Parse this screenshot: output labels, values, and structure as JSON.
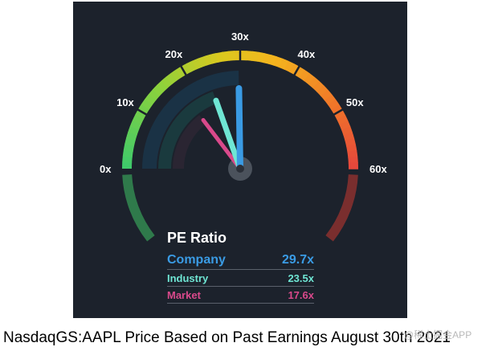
{
  "chart_data": {
    "type": "gauge",
    "title": "PE Ratio",
    "scale": {
      "min": 0,
      "max": 60,
      "ticks": [
        0,
        10,
        20,
        30,
        40,
        50,
        60
      ],
      "tick_labels": [
        "0x",
        "10x",
        "20x",
        "30x",
        "40x",
        "50x",
        "60x"
      ]
    },
    "series": [
      {
        "name": "Company",
        "value": 29.7,
        "label": "29.7x",
        "color": "#3a9be4"
      },
      {
        "name": "Industry",
        "value": 23.5,
        "label": "23.5x",
        "color": "#6fe6d4"
      },
      {
        "name": "Market",
        "value": 17.6,
        "label": "17.6x",
        "color": "#d9498b"
      }
    ]
  },
  "caption": "NasdaqGS:AAPL Price Based on Past Earnings August 30th 2021",
  "watermark": "@稀土掘金APP"
}
